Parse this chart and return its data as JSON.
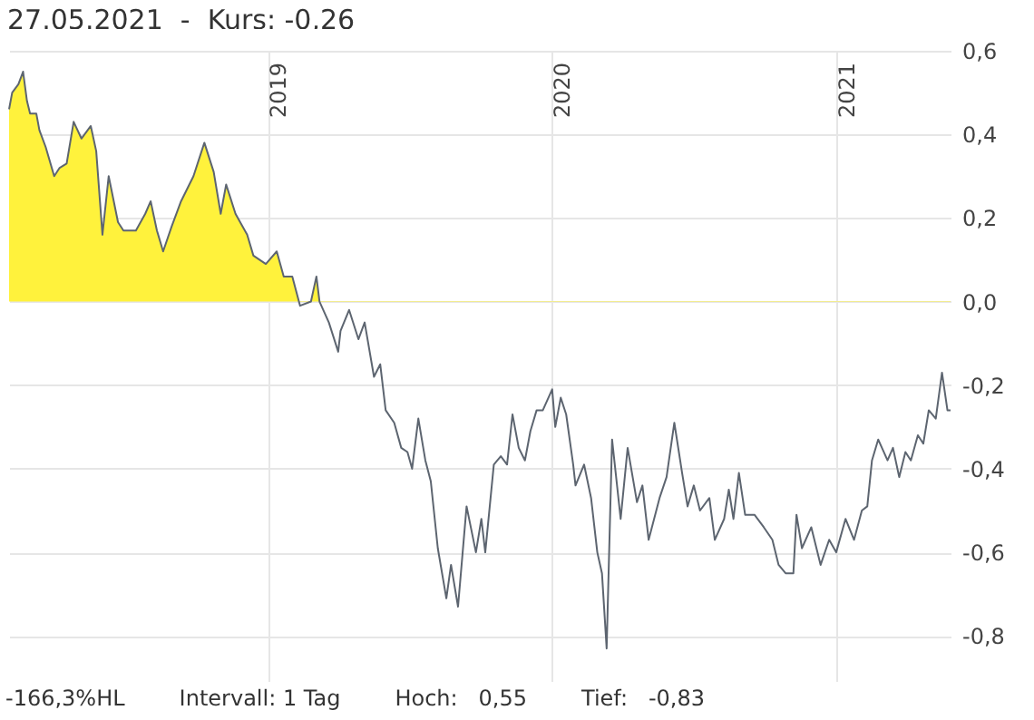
{
  "chart_data": {
    "type": "line",
    "title": "27.05.2021  -  Kurs: -0,26",
    "x": [
      "2018-02-02",
      "2018-02-06",
      "2018-02-14",
      "2018-02-20",
      "2018-02-25",
      "2018-03-01",
      "2018-03-09",
      "2018-03-13",
      "2018-03-21",
      "2018-04-01",
      "2018-04-08",
      "2018-04-17",
      "2018-04-26",
      "2018-05-06",
      "2018-05-18",
      "2018-05-25",
      "2018-06-02",
      "2018-06-10",
      "2018-06-22",
      "2018-06-29",
      "2018-07-15",
      "2018-07-27",
      "2018-08-03",
      "2018-08-11",
      "2018-08-19",
      "2018-08-30",
      "2018-09-11",
      "2018-09-27",
      "2018-10-11",
      "2018-10-23",
      "2018-11-01",
      "2018-11-08",
      "2018-11-20",
      "2018-12-05",
      "2018-12-13",
      "2018-12-29",
      "2019-01-12",
      "2019-01-21",
      "2019-02-01",
      "2019-02-11",
      "2019-02-25",
      "2019-03-04",
      "2019-03-08",
      "2019-03-20",
      "2019-04-01",
      "2019-04-04",
      "2019-04-15",
      "2019-04-27",
      "2019-05-05",
      "2019-05-17",
      "2019-05-25",
      "2019-06-01",
      "2019-06-12",
      "2019-06-21",
      "2019-06-29",
      "2019-07-05",
      "2019-07-13",
      "2019-07-22",
      "2019-07-29",
      "2019-08-07",
      "2019-08-18",
      "2019-08-24",
      "2019-09-02",
      "2019-09-13",
      "2019-09-25",
      "2019-10-02",
      "2019-10-07",
      "2019-10-18",
      "2019-10-27",
      "2019-11-04",
      "2019-11-11",
      "2019-11-19",
      "2019-11-27",
      "2019-12-04",
      "2019-12-12",
      "2019-12-20",
      "2020-01-01",
      "2020-01-05",
      "2020-01-12",
      "2020-01-19",
      "2020-01-28",
      "2020-01-31",
      "2020-02-11",
      "2020-02-20",
      "2020-02-28",
      "2020-03-05",
      "2020-03-11",
      "2020-03-18",
      "2020-03-29",
      "2020-04-07",
      "2020-04-19",
      "2020-04-26",
      "2020-05-04",
      "2020-05-18",
      "2020-05-27",
      "2020-06-06",
      "2020-06-16",
      "2020-06-23",
      "2020-07-01",
      "2020-07-09",
      "2020-07-21",
      "2020-07-28",
      "2020-08-09",
      "2020-08-15",
      "2020-08-21",
      "2020-08-28",
      "2020-09-05",
      "2020-09-17",
      "2020-09-29",
      "2020-10-10",
      "2020-10-18",
      "2020-10-27",
      "2020-11-06",
      "2020-11-10",
      "2020-11-17",
      "2020-11-29",
      "2020-12-11",
      "2020-12-22",
      "2020-12-31",
      "2021-01-12",
      "2021-01-23",
      "2021-02-02",
      "2021-02-09",
      "2021-02-15",
      "2021-02-23",
      "2021-03-07",
      "2021-03-14",
      "2021-03-22",
      "2021-03-30",
      "2021-04-06",
      "2021-04-15",
      "2021-04-22",
      "2021-04-29",
      "2021-05-08",
      "2021-05-16",
      "2021-05-23",
      "2021-05-27"
    ],
    "series": [
      {
        "color": "#5d6570",
        "values": [
          0.46,
          0.5,
          0.52,
          0.55,
          0.48,
          0.45,
          0.45,
          0.41,
          0.37,
          0.3,
          0.32,
          0.33,
          0.43,
          0.39,
          0.42,
          0.36,
          0.16,
          0.3,
          0.19,
          0.17,
          0.17,
          0.21,
          0.24,
          0.17,
          0.12,
          0.18,
          0.24,
          0.3,
          0.38,
          0.31,
          0.21,
          0.28,
          0.21,
          0.16,
          0.11,
          0.09,
          0.12,
          0.06,
          0.06,
          -0.01,
          0.0,
          0.06,
          0.0,
          -0.05,
          -0.12,
          -0.07,
          -0.02,
          -0.09,
          -0.05,
          -0.18,
          -0.15,
          -0.26,
          -0.29,
          -0.35,
          -0.36,
          -0.4,
          -0.28,
          -0.38,
          -0.43,
          -0.59,
          -0.71,
          -0.63,
          -0.73,
          -0.49,
          -0.6,
          -0.52,
          -0.6,
          -0.39,
          -0.37,
          -0.39,
          -0.27,
          -0.35,
          -0.38,
          -0.31,
          -0.26,
          -0.26,
          -0.21,
          -0.3,
          -0.23,
          -0.27,
          -0.39,
          -0.44,
          -0.39,
          -0.47,
          -0.6,
          -0.65,
          -0.83,
          -0.33,
          -0.52,
          -0.35,
          -0.48,
          -0.44,
          -0.57,
          -0.47,
          -0.42,
          -0.29,
          -0.41,
          -0.49,
          -0.44,
          -0.5,
          -0.47,
          -0.57,
          -0.52,
          -0.45,
          -0.52,
          -0.41,
          -0.51,
          -0.51,
          -0.54,
          -0.57,
          -0.63,
          -0.65,
          -0.65,
          -0.51,
          -0.59,
          -0.54,
          -0.63,
          -0.57,
          -0.6,
          -0.52,
          -0.57,
          -0.5,
          -0.49,
          -0.38,
          -0.33,
          -0.38,
          -0.35,
          -0.42,
          -0.36,
          -0.38,
          -0.32,
          -0.34,
          -0.26,
          -0.28,
          -0.17,
          -0.26,
          -0.26
        ]
      }
    ],
    "xlim": [
      "2018-02-02",
      "2021-05-27"
    ],
    "xticks": [
      {
        "value": "2019-01-01",
        "label": "2019"
      },
      {
        "value": "2020-01-01",
        "label": "2020"
      },
      {
        "value": "2021-01-01",
        "label": "2021"
      }
    ],
    "ylim": [
      -0.91,
      0.6
    ],
    "yticks": [
      {
        "value": -0.8,
        "label": "-0,8"
      },
      {
        "value": -0.6,
        "label": "-0,6"
      },
      {
        "value": -0.4,
        "label": "-0,4"
      },
      {
        "value": -0.2,
        "label": "-0,2"
      },
      {
        "value": 0,
        "label": "0,0"
      },
      {
        "value": 0.2,
        "label": "0,2"
      },
      {
        "value": 0.4,
        "label": "0,4"
      },
      {
        "value": 0.6,
        "label": "0,6"
      }
    ],
    "grid": true,
    "annotations": [
      "-166,3%HL",
      "Intervall: 1 Tag",
      "Hoch:   0,55",
      "Tief:   -0,83"
    ]
  }
}
